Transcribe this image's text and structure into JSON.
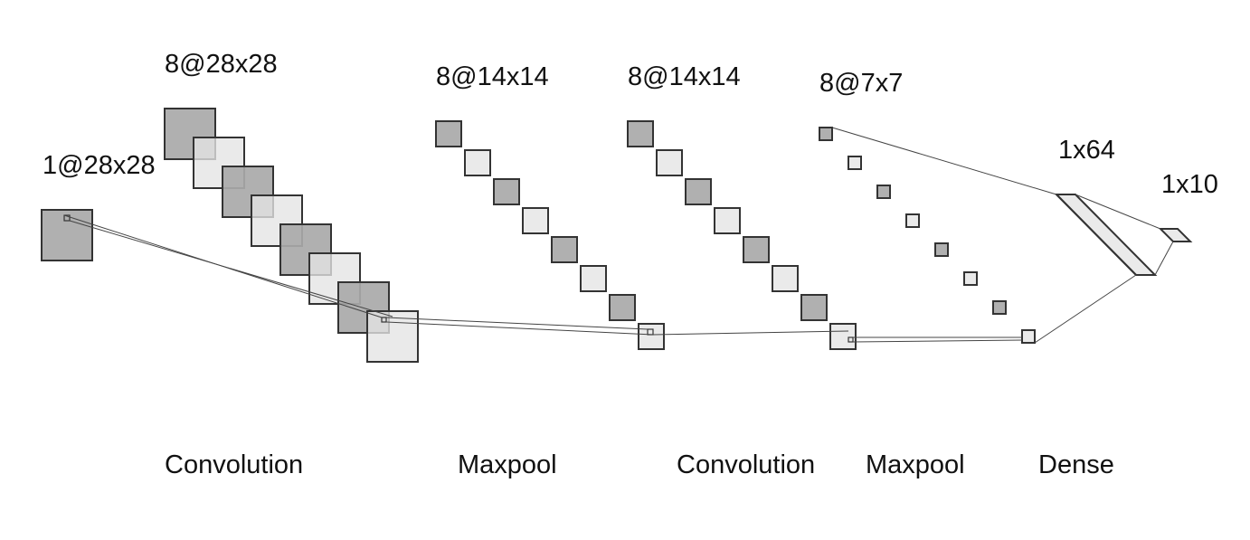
{
  "diagram": {
    "shape_labels": {
      "input": "1@28x28",
      "conv1": "8@28x28",
      "pool1": "8@14x14",
      "conv2": "8@14x14",
      "pool2": "8@7x7",
      "dense1": "1x64",
      "dense2": "1x10"
    },
    "operation_labels": {
      "op_conv1": "Convolution",
      "op_pool1": "Maxpool",
      "op_conv2": "Convolution",
      "op_pool2": "Maxpool",
      "op_dense": "Dense"
    },
    "colors": {
      "fill_dark": "#a9a9a9",
      "fill_light": "#e4e4e4",
      "stroke": "#333333",
      "connector": "#444444"
    }
  }
}
